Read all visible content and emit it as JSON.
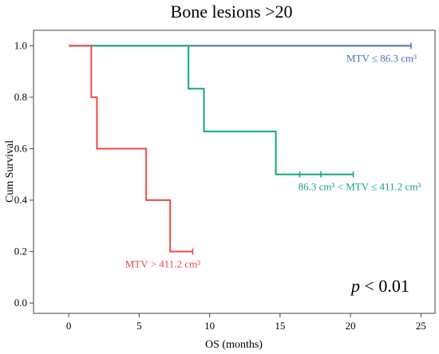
{
  "chart_data": {
    "type": "line",
    "subtype": "kaplan-meier step",
    "title": "Bone lesions >20",
    "xlabel": "OS (months)",
    "ylabel": "Cum Survival",
    "xlim": [
      -2.5,
      26
    ],
    "ylim": [
      -0.04,
      1.06
    ],
    "xticks": [
      0,
      5,
      10,
      15,
      20,
      25
    ],
    "yticks": [
      0.0,
      0.2,
      0.4,
      0.6,
      0.8,
      1.0
    ],
    "xtick_labels": [
      "0",
      "5",
      "10",
      "15",
      "20",
      "25"
    ],
    "ytick_labels": [
      "0.0",
      "0.2",
      "0.4",
      "0.6",
      "0.8",
      "1.0"
    ],
    "annotation": {
      "p_symbol": "p",
      "p_rest": " < 0.01"
    },
    "grid": false,
    "series": [
      {
        "name": "MTV ≤ 86.3 cm³",
        "color": "#4a72b8",
        "steps": [
          [
            0,
            1.0
          ],
          [
            24.3,
            1.0
          ]
        ],
        "censored": [
          [
            24.3,
            1.0
          ]
        ]
      },
      {
        "name": "86.3 cm³ < MTV ≤ 411.2 cm³",
        "color": "#16a96a",
        "steps": [
          [
            0,
            1.0
          ],
          [
            8.5,
            0.833
          ],
          [
            9.6,
            0.667
          ],
          [
            14.7,
            0.5
          ],
          [
            20.2,
            0.5
          ]
        ],
        "censored": [
          [
            16.4,
            0.5
          ],
          [
            17.9,
            0.5
          ],
          [
            20.2,
            0.5
          ]
        ]
      },
      {
        "name": "MTV > 411.2 cm³",
        "color": "#f04a4a",
        "steps": [
          [
            0,
            1.0
          ],
          [
            1.6,
            0.8
          ],
          [
            2.0,
            0.6
          ],
          [
            5.5,
            0.4
          ],
          [
            7.2,
            0.2
          ],
          [
            8.8,
            0.2
          ]
        ],
        "censored": [
          [
            8.8,
            0.2
          ]
        ]
      }
    ]
  }
}
